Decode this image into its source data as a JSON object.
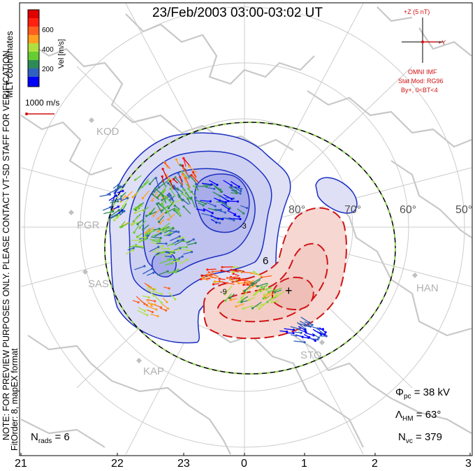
{
  "title": "23/Feb/2003 03:00-03:02 UT",
  "side_notes": {
    "coords": "MLT coordinates",
    "preview": "NOTE: FOR PREVIEW PURPOSES ONLY. PLEASE CONTACT VT-SD STAFF FOR VERIFICATION.",
    "fit": "FitOrder: 8, mapEX format"
  },
  "colorbar": {
    "label": "Vel [m/s]",
    "ticks": [
      "600",
      "400",
      "200"
    ],
    "colors": [
      "#0000ff",
      "#3060c0",
      "#2e8b57",
      "#66cc33",
      "#b0e040",
      "#ffa020",
      "#ff6020",
      "#ff2010",
      "#e00000"
    ]
  },
  "scale_vector": {
    "label": "1000 m/s",
    "color": "#d01010"
  },
  "imf": {
    "z_label": "+Z (5 nT)",
    "y_label": "+Y",
    "source": "OMNI IMF",
    "model": "Stat Mod: RG96",
    "condition": "By+, 0<BT<4",
    "color": "#d01010"
  },
  "lat_labels": [
    "80°",
    "70°",
    "60°",
    "50°"
  ],
  "mlt_labels": [
    "21",
    "22",
    "23",
    "0",
    "1",
    "2",
    "3"
  ],
  "stations": [
    "KOD",
    "PGR",
    "SAS",
    "KAP",
    "HAN",
    "STO"
  ],
  "stats": {
    "phi_pc": "38 kV",
    "lambda_hm": "63°",
    "n_vc": "379",
    "n_rads": "6"
  },
  "contour_labels": [
    "-9",
    "-3",
    "6"
  ],
  "colors": {
    "negative": "#1a2fc0",
    "negative_fill": "#c8cbf0",
    "positive": "#d01515",
    "positive_fill": "#f6d7d2",
    "boundary_green": "#8fd14f",
    "coast": "#c8c8c8",
    "grid": "#cccccc"
  }
}
